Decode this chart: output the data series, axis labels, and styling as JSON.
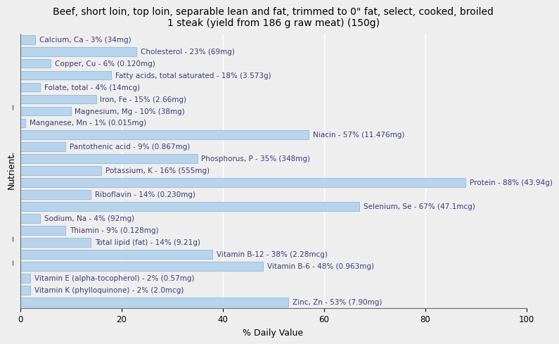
{
  "title": "Beef, short loin, top loin, separable lean and fat, trimmed to 0\" fat, select, cooked, broiled\n1 steak (yield from 186 g raw meat) (150g)",
  "xlabel": "% Daily Value",
  "ylabel": "Nutrient",
  "xlim": [
    0,
    100
  ],
  "nutrients": [
    {
      "label": "Calcium, Ca - 3% (34mg)",
      "value": 3
    },
    {
      "label": "Cholesterol - 23% (69mg)",
      "value": 23
    },
    {
      "label": "Copper, Cu - 6% (0.120mg)",
      "value": 6
    },
    {
      "label": "Fatty acids, total saturated - 18% (3.573g)",
      "value": 18
    },
    {
      "label": "Folate, total - 4% (14mcg)",
      "value": 4
    },
    {
      "label": "Iron, Fe - 15% (2.66mg)",
      "value": 15
    },
    {
      "label": "Magnesium, Mg - 10% (38mg)",
      "value": 10
    },
    {
      "label": "Manganese, Mn - 1% (0.015mg)",
      "value": 1
    },
    {
      "label": "Niacin - 57% (11.476mg)",
      "value": 57
    },
    {
      "label": "Pantothenic acid - 9% (0.867mg)",
      "value": 9
    },
    {
      "label": "Phosphorus, P - 35% (348mg)",
      "value": 35
    },
    {
      "label": "Potassium, K - 16% (555mg)",
      "value": 16
    },
    {
      "label": "Protein - 88% (43.94g)",
      "value": 88
    },
    {
      "label": "Riboflavin - 14% (0.230mg)",
      "value": 14
    },
    {
      "label": "Selenium, Se - 67% (47.1mcg)",
      "value": 67
    },
    {
      "label": "Sodium, Na - 4% (92mg)",
      "value": 4
    },
    {
      "label": "Thiamin - 9% (0.128mg)",
      "value": 9
    },
    {
      "label": "Total lipid (fat) - 14% (9.21g)",
      "value": 14
    },
    {
      "label": "Vitamin B-12 - 38% (2.28mcg)",
      "value": 38
    },
    {
      "label": "Vitamin B-6 - 48% (0.963mg)",
      "value": 48
    },
    {
      "label": "Vitamin E (alpha-tocopherol) - 2% (0.57mg)",
      "value": 2
    },
    {
      "label": "Vitamin K (phylloquinone) - 2% (2.0mcg)",
      "value": 2
    },
    {
      "label": "Zinc, Zn - 53% (7.90mg)",
      "value": 53
    }
  ],
  "bar_color": "#b8d4ed",
  "bar_edge_color": "#8ab0d4",
  "bg_color": "#eeeeee",
  "text_color": "#3a3a7a",
  "grid_color": "#ffffff",
  "title_fontsize": 10,
  "label_fontsize": 7.5,
  "axis_label_fontsize": 9,
  "group_boundaries_from_bottom": [
    3.5,
    5.5,
    10.5,
    12.5,
    16.5
  ]
}
